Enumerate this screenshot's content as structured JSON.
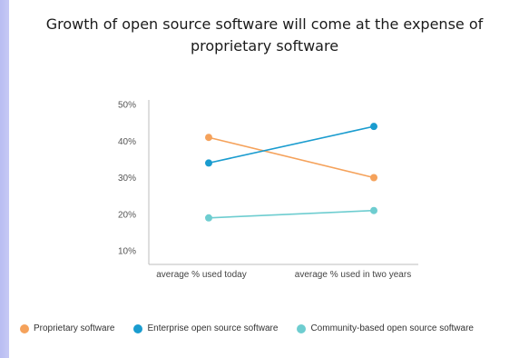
{
  "chart_data": {
    "type": "line",
    "title": "Growth of open source software will come at the expense of proprietary software",
    "title_lines": [
      "Growth of open source software will come at the expense of",
      "proprietary software"
    ],
    "categories": [
      "average % used today",
      "average % used in two years"
    ],
    "yticks": [
      "10%",
      "20%",
      "30%",
      "40%",
      "50%"
    ],
    "ylim": [
      10,
      50
    ],
    "series": [
      {
        "name": "Proprietary software",
        "values": [
          41,
          30
        ],
        "color": "#f5a25b"
      },
      {
        "name": "Enterprise open source software",
        "values": [
          34,
          44
        ],
        "color": "#1a9ccf"
      },
      {
        "name": "Community-based open source software",
        "values": [
          19,
          21
        ],
        "color": "#6ecdd0"
      }
    ],
    "grid": false,
    "legend_position": "bottom"
  }
}
